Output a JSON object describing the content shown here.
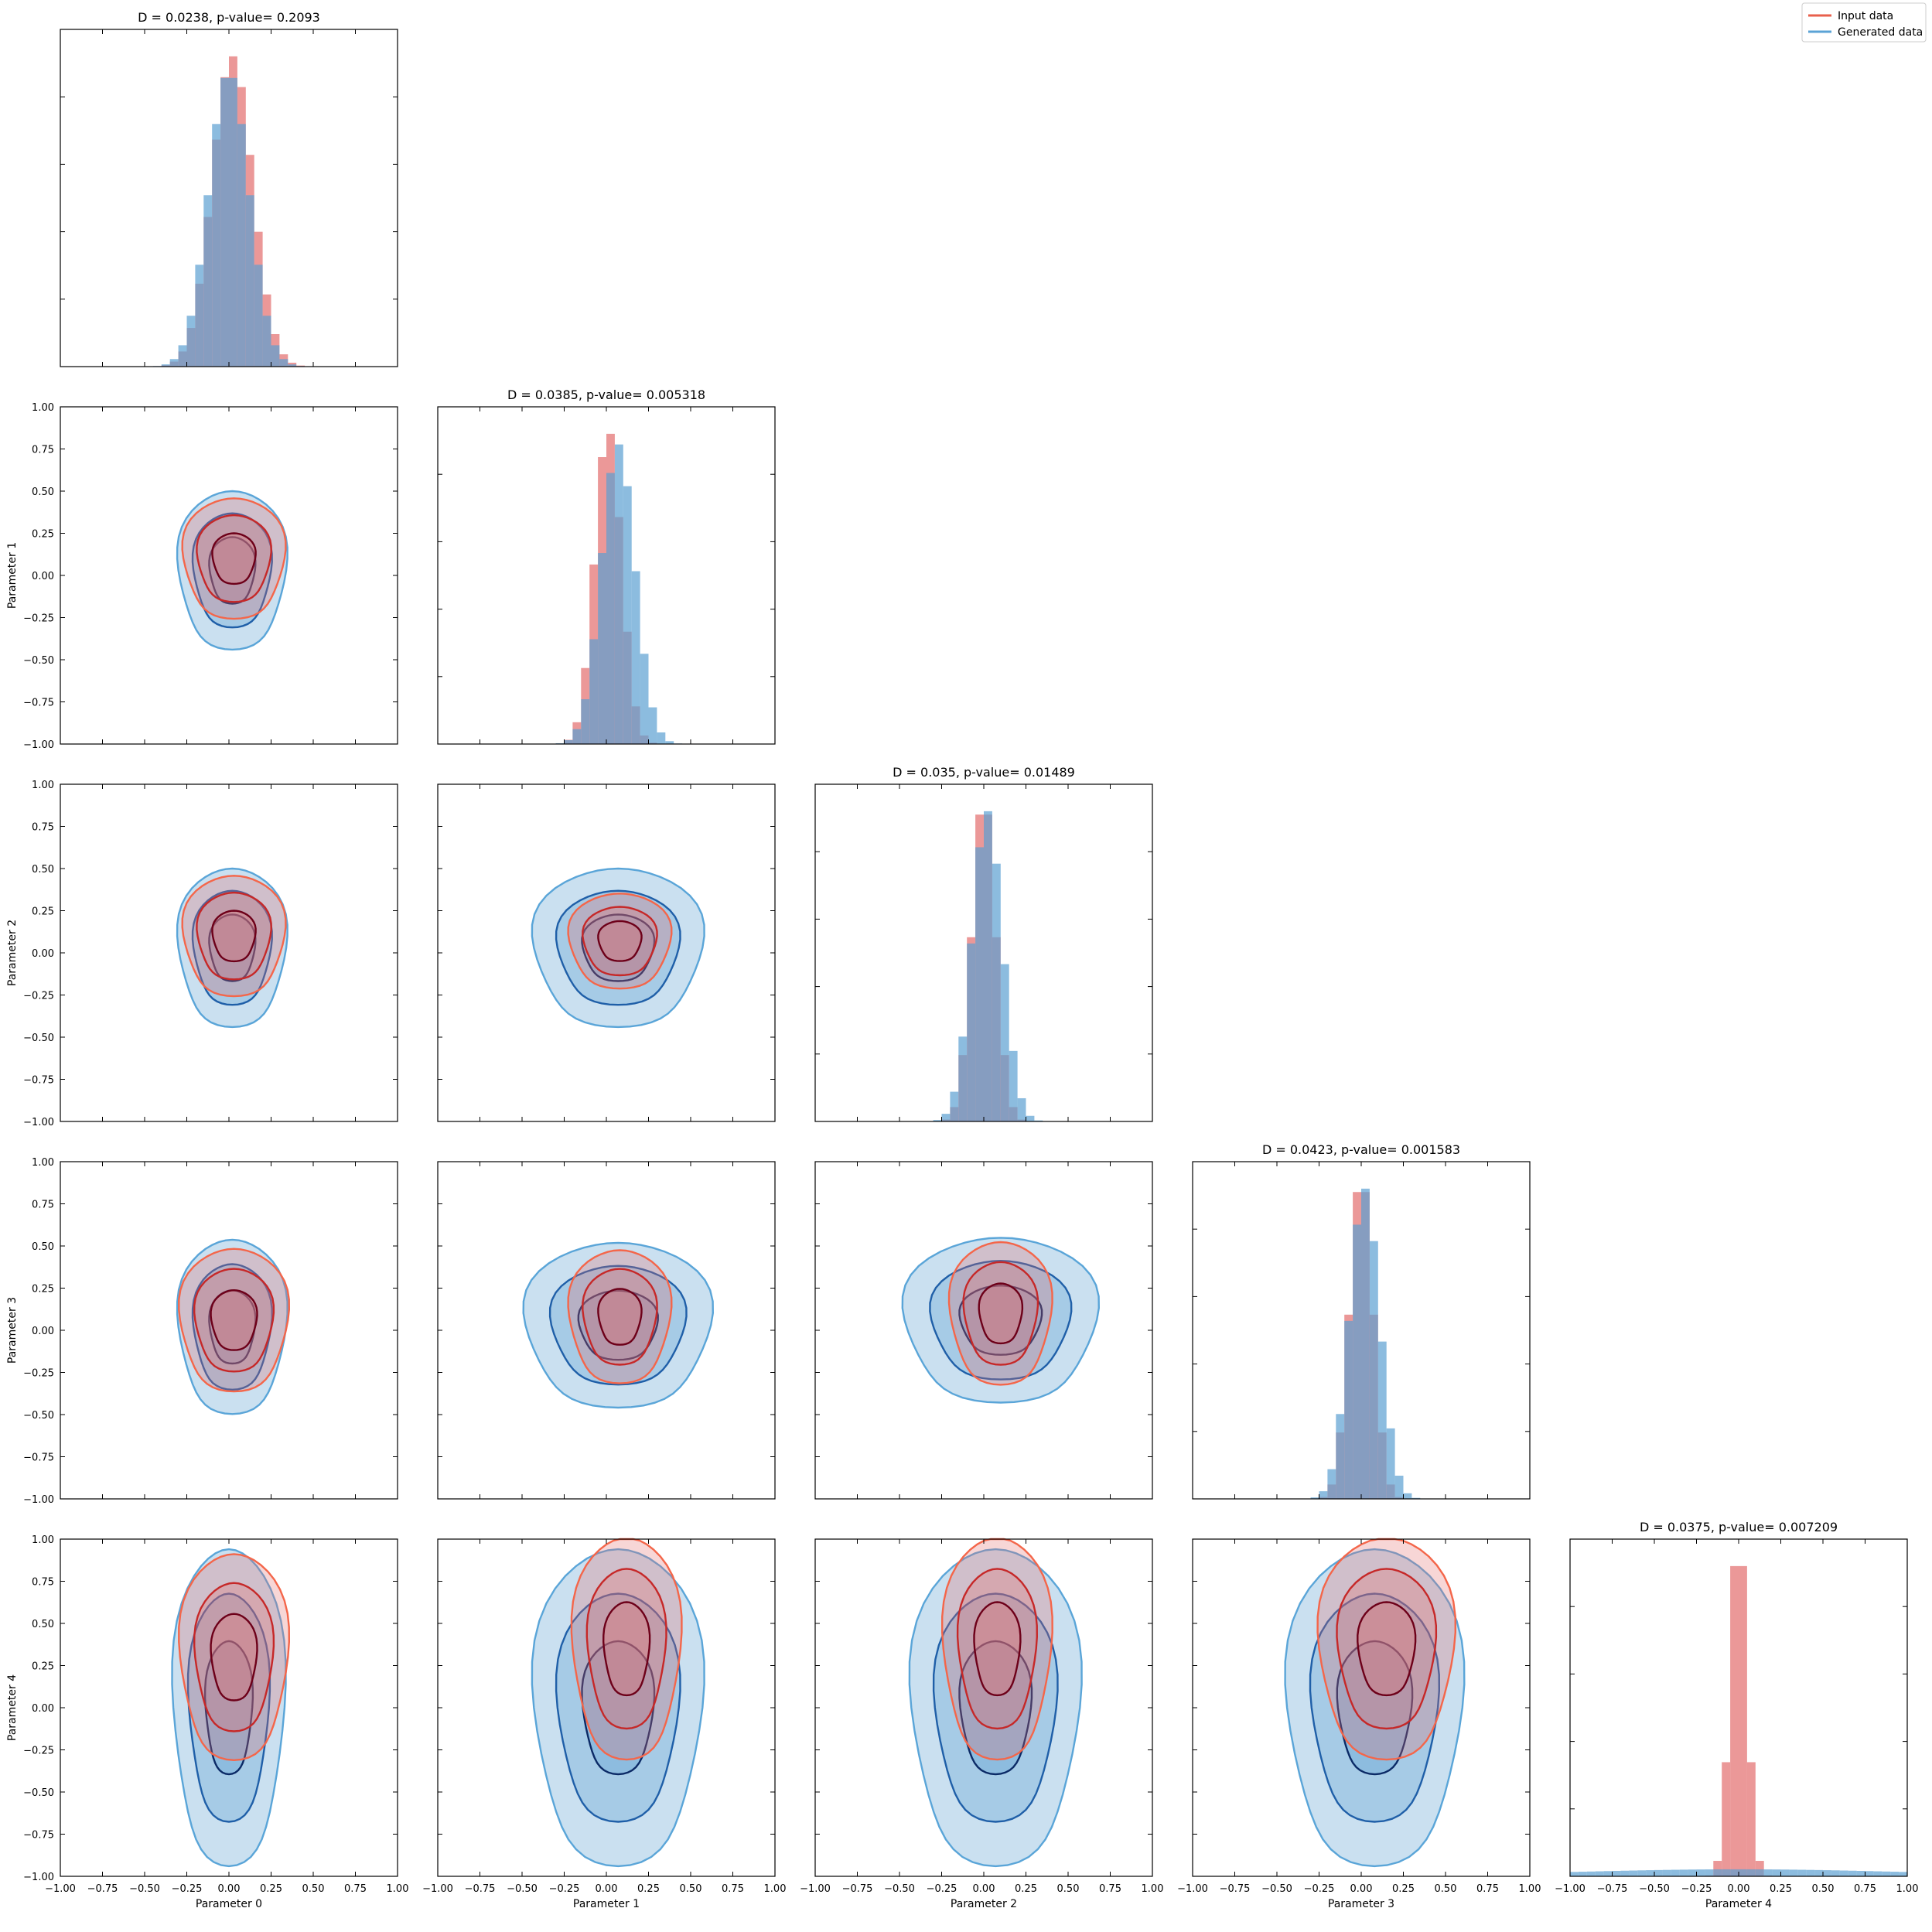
{
  "legend": {
    "placement": "top-right",
    "entries": [
      {
        "label": "Input data",
        "color": "#e8604c"
      },
      {
        "label": "Generated data",
        "color": "#5ba3d6"
      }
    ]
  },
  "colors": {
    "input_fill": "#e36c6c",
    "input_line_outer": "#f4664a",
    "input_line_mid": "#c62828",
    "input_line_inner": "#6d0019",
    "generated_fill": "#5b9fd1",
    "generated_line_outer": "#5aa5d8",
    "generated_line_mid": "#1f5fa8",
    "generated_line_inner": "#0b2a66",
    "overlap": "#7a749a"
  },
  "chart_data": {
    "type": "corner",
    "parameters": [
      "Parameter 0",
      "Parameter 1",
      "Parameter 2",
      "Parameter 3",
      "Parameter 4"
    ],
    "axis_range": [
      -1.0,
      1.0
    ],
    "tick_values": [
      -1.0,
      -0.75,
      -0.5,
      -0.25,
      0.0,
      0.25,
      0.5,
      0.75,
      1.0
    ],
    "tick_labels": [
      "−1.00",
      "−0.75",
      "−0.50",
      "−0.25",
      "0.00",
      "0.25",
      "0.50",
      "0.75",
      "1.00"
    ],
    "diagonal_titles": [
      "D = 0.0238, p-value= 0.2093",
      "D = 0.0385, p-value= 0.005318",
      "D = 0.035, p-value= 0.01489",
      "D = 0.0423, p-value= 0.001583",
      "D = 0.0375, p-value= 0.007209"
    ],
    "marginals": [
      {
        "parameter": "Parameter 0",
        "input": {
          "center": 0.02,
          "sigma": 0.12
        },
        "generated": {
          "center": 0.0,
          "sigma": 0.12
        }
      },
      {
        "parameter": "Parameter 1",
        "input": {
          "center": 0.01,
          "sigma": 0.08
        },
        "generated": {
          "center": 0.07,
          "sigma": 0.1
        }
      },
      {
        "parameter": "Parameter 2",
        "input": {
          "center": 0.0,
          "sigma": 0.07
        },
        "generated": {
          "center": 0.02,
          "sigma": 0.09
        }
      },
      {
        "parameter": "Parameter 3",
        "input": {
          "center": 0.0,
          "sigma": 0.07
        },
        "generated": {
          "center": 0.02,
          "sigma": 0.09
        }
      },
      {
        "parameter": "Parameter 4",
        "input": {
          "center": 0.0,
          "sigma": 0.05
        },
        "generated": {
          "center": 0.0,
          "sigma": 1.0
        }
      }
    ],
    "pairs": [
      {
        "x": 0,
        "y": 1,
        "input": {
          "cx": 0.03,
          "cy": 0.1,
          "rx": 0.3,
          "ry": 0.38
        },
        "generated": {
          "cx": 0.02,
          "cy": 0.03,
          "rx": 0.32,
          "ry": 0.5
        }
      },
      {
        "x": 0,
        "y": 2,
        "input": {
          "cx": 0.03,
          "cy": 0.1,
          "rx": 0.3,
          "ry": 0.38
        },
        "generated": {
          "cx": 0.02,
          "cy": 0.03,
          "rx": 0.32,
          "ry": 0.5
        }
      },
      {
        "x": 1,
        "y": 2,
        "input": {
          "cx": 0.08,
          "cy": 0.07,
          "rx": 0.3,
          "ry": 0.3
        },
        "generated": {
          "cx": 0.07,
          "cy": 0.03,
          "rx": 0.5,
          "ry": 0.5
        }
      },
      {
        "x": 0,
        "y": 3,
        "input": {
          "cx": 0.03,
          "cy": 0.06,
          "rx": 0.32,
          "ry": 0.45
        },
        "generated": {
          "cx": 0.02,
          "cy": 0.02,
          "rx": 0.32,
          "ry": 0.55
        }
      },
      {
        "x": 1,
        "y": 3,
        "input": {
          "cx": 0.08,
          "cy": 0.08,
          "rx": 0.3,
          "ry": 0.42
        },
        "generated": {
          "cx": 0.07,
          "cy": 0.03,
          "rx": 0.55,
          "ry": 0.52
        }
      },
      {
        "x": 2,
        "y": 3,
        "input": {
          "cx": 0.1,
          "cy": 0.1,
          "rx": 0.3,
          "ry": 0.45
        },
        "generated": {
          "cx": 0.1,
          "cy": 0.06,
          "rx": 0.57,
          "ry": 0.52
        }
      },
      {
        "x": 0,
        "y": 4,
        "input": {
          "cx": 0.03,
          "cy": 0.3,
          "rx": 0.32,
          "ry": 0.65
        },
        "generated": {
          "cx": 0.0,
          "cy": 0.0,
          "rx": 0.33,
          "ry": 1.0
        }
      },
      {
        "x": 1,
        "y": 4,
        "input": {
          "cx": 0.12,
          "cy": 0.35,
          "rx": 0.32,
          "ry": 0.7
        },
        "generated": {
          "cx": 0.07,
          "cy": 0.0,
          "rx": 0.5,
          "ry": 1.0
        }
      },
      {
        "x": 2,
        "y": 4,
        "input": {
          "cx": 0.08,
          "cy": 0.35,
          "rx": 0.32,
          "ry": 0.7
        },
        "generated": {
          "cx": 0.07,
          "cy": 0.0,
          "rx": 0.5,
          "ry": 1.0
        }
      },
      {
        "x": 3,
        "y": 4,
        "input": {
          "cx": 0.15,
          "cy": 0.35,
          "rx": 0.4,
          "ry": 0.7
        },
        "generated": {
          "cx": 0.08,
          "cy": 0.0,
          "rx": 0.52,
          "ry": 1.0
        }
      }
    ],
    "grid": false
  }
}
